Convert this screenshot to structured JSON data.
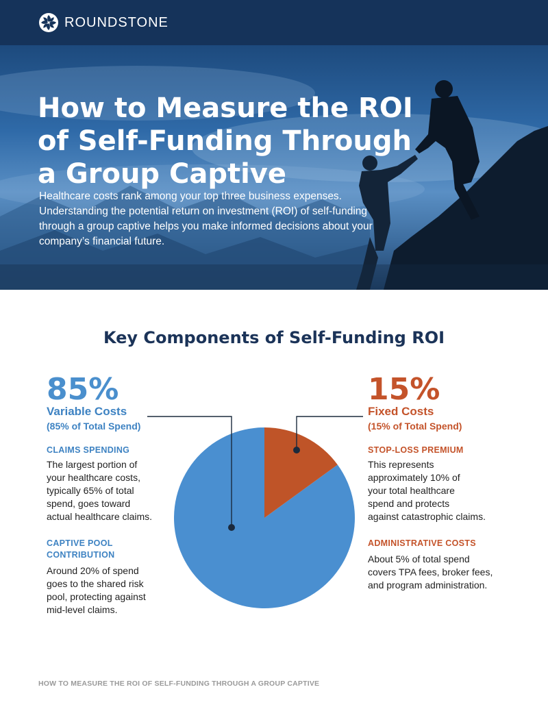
{
  "brand": {
    "name": "ROUNDSTONE"
  },
  "hero": {
    "title_lines": [
      "How to Measure the ROI",
      "of Self-Funding Through",
      "a Group Captive"
    ],
    "subtitle_lines": [
      "Healthcare costs rank among your top three business expenses.",
      "Understanding the potential return on investment (ROI) of self-funding",
      "through a group captive helps you make informed decisions about your",
      "company’s financial future."
    ]
  },
  "section": {
    "title": "Key Components of Self-Funding ROI"
  },
  "left": {
    "percent": "85%",
    "title": "Variable Costs",
    "subtitle": "(85% of Total Spend)",
    "items": [
      {
        "heading_lines": [
          "CLAIMS SPENDING"
        ],
        "body_lines": [
          "The largest portion of",
          "your healthcare costs,",
          "typically 65% of total",
          "spend, goes toward",
          "actual healthcare claims."
        ]
      },
      {
        "heading_lines": [
          "CAPTIVE POOL",
          "CONTRIBUTION"
        ],
        "body_lines": [
          "Around 20% of spend",
          "goes to the shared risk",
          "pool, protecting against",
          "mid-level claims."
        ]
      }
    ]
  },
  "right": {
    "percent": "15%",
    "title": "Fixed Costs",
    "subtitle": "(15% of Total Spend)",
    "items": [
      {
        "heading_lines": [
          "STOP-LOSS PREMIUM"
        ],
        "body_lines": [
          "This represents",
          "approximately 10% of",
          "your total healthcare",
          "spend and protects",
          "against catastrophic claims."
        ]
      },
      {
        "heading_lines": [
          "ADMINISTRATIVE COSTS"
        ],
        "body_lines": [
          "About 5% of total spend",
          "covers TPA fees, broker fees,",
          "and program administration."
        ]
      }
    ]
  },
  "chart_data": {
    "type": "pie",
    "slices": [
      {
        "label": "Variable Costs",
        "value": 85,
        "color": "#4a8fd0"
      },
      {
        "label": "Fixed Costs",
        "value": 15,
        "color": "#bf5428"
      }
    ]
  },
  "colors": {
    "navy": "#15335a",
    "blue": "#4a8fd0",
    "orange": "#bf5428"
  },
  "footer": {
    "text": "HOW TO MEASURE THE ROI OF SELF-FUNDING THROUGH A GROUP CAPTIVE"
  }
}
